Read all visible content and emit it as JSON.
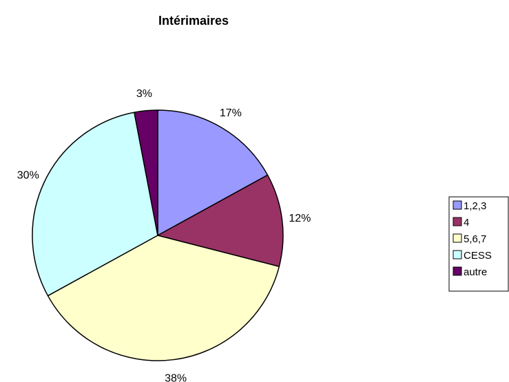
{
  "chart_data": {
    "type": "pie",
    "title": "Intérimaires",
    "categories": [
      "1,2,3",
      "4",
      "5,6,7",
      "CESS",
      "autre"
    ],
    "values": [
      17,
      12,
      38,
      30,
      3
    ],
    "labels": [
      "17%",
      "12%",
      "38%",
      "30%",
      "3%"
    ],
    "colors": [
      "#9999ff",
      "#993366",
      "#ffffcc",
      "#ccffff",
      "#660066"
    ],
    "legend_position": "right"
  }
}
